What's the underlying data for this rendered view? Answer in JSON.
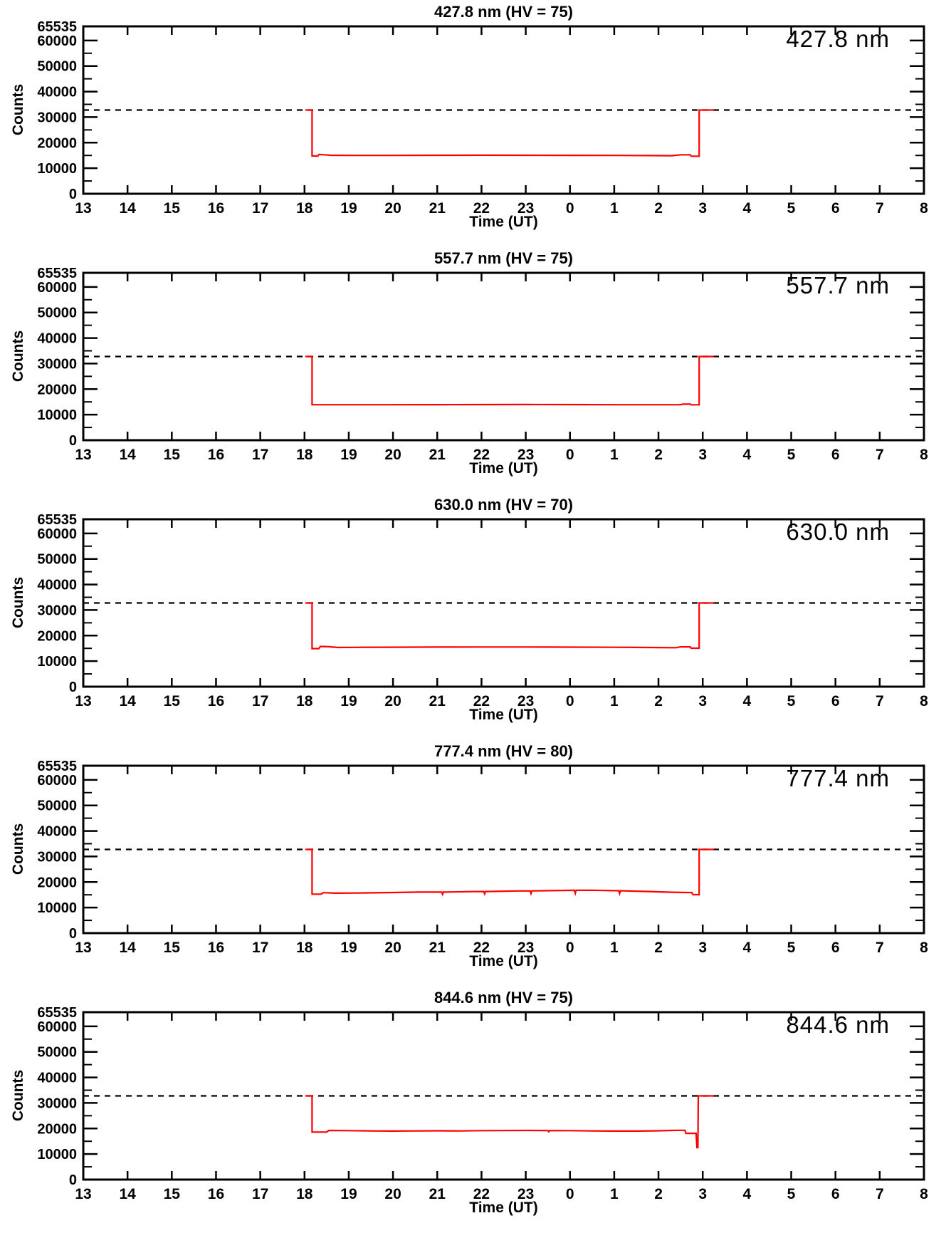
{
  "page": {
    "background": "#ffffff",
    "description": "Five stacked photometer count time-series panels"
  },
  "shared_axes": {
    "xlabel": "Time (UT)",
    "ylabel": "Counts",
    "x_tick_labels": [
      "13",
      "14",
      "15",
      "16",
      "17",
      "18",
      "19",
      "20",
      "21",
      "22",
      "23",
      "0",
      "1",
      "2",
      "3",
      "4",
      "5",
      "6",
      "7",
      "8"
    ],
    "x_range_hours": [
      13,
      32
    ],
    "ylim": [
      0,
      65535
    ],
    "y_major_ticks": [
      0,
      10000,
      20000,
      30000,
      40000,
      50000,
      60000,
      65535
    ],
    "y_major_labels": [
      "0",
      "10000",
      "20000",
      "30000",
      "40000",
      "50000",
      "60000",
      "65535"
    ],
    "y_minor_ticks": [
      5000,
      15000,
      25000,
      35000,
      45000,
      55000
    ],
    "reference_line": {
      "value": 32768,
      "style": "dashed",
      "color": "#000000"
    },
    "axis_color": "#000000",
    "grid": "off",
    "note": "Point x values are UT hours; values >= 24 represent times after midnight (24 = 0 UT, 27 = 3 UT)"
  },
  "chart_data": [
    {
      "type": "line",
      "title": "427.8 nm (HV = 75)",
      "wavelength_label": "427.8 nm",
      "hv": 75,
      "xlabel": "Time (UT)",
      "ylabel": "Counts",
      "line_color": "#ff0000",
      "points": [
        [
          18.02,
          32768
        ],
        [
          18.17,
          32768
        ],
        [
          18.17,
          14800
        ],
        [
          18.3,
          14750
        ],
        [
          18.33,
          15400
        ],
        [
          18.45,
          15250
        ],
        [
          18.6,
          15050
        ],
        [
          19.0,
          15000
        ],
        [
          20.0,
          15000
        ],
        [
          21.0,
          15050
        ],
        [
          22.0,
          15080
        ],
        [
          23.0,
          15060
        ],
        [
          24.0,
          15020
        ],
        [
          25.0,
          15000
        ],
        [
          25.8,
          14950
        ],
        [
          26.3,
          14900
        ],
        [
          26.5,
          15250
        ],
        [
          26.72,
          15250
        ],
        [
          26.74,
          14700
        ],
        [
          26.92,
          14700
        ],
        [
          26.92,
          32768
        ],
        [
          27.25,
          32768
        ]
      ]
    },
    {
      "type": "line",
      "title": "557.7 nm (HV = 75)",
      "wavelength_label": "557.7 nm",
      "hv": 75,
      "xlabel": "Time (UT)",
      "ylabel": "Counts",
      "line_color": "#ff0000",
      "points": [
        [
          18.02,
          32768
        ],
        [
          18.17,
          32768
        ],
        [
          18.17,
          13900
        ],
        [
          19.0,
          13880
        ],
        [
          20.0,
          13900
        ],
        [
          21.0,
          13920
        ],
        [
          22.0,
          13950
        ],
        [
          23.0,
          13960
        ],
        [
          24.0,
          13940
        ],
        [
          25.0,
          13900
        ],
        [
          26.0,
          13880
        ],
        [
          26.5,
          13880
        ],
        [
          26.55,
          14120
        ],
        [
          26.72,
          14120
        ],
        [
          26.74,
          13850
        ],
        [
          26.92,
          13850
        ],
        [
          26.92,
          32768
        ],
        [
          27.25,
          32768
        ]
      ]
    },
    {
      "type": "line",
      "title": "630.0 nm (HV = 70)",
      "wavelength_label": "630.0 nm",
      "hv": 70,
      "xlabel": "Time (UT)",
      "ylabel": "Counts",
      "line_color": "#ff0000",
      "points": [
        [
          18.02,
          32768
        ],
        [
          18.17,
          32768
        ],
        [
          18.17,
          14900
        ],
        [
          18.32,
          14900
        ],
        [
          18.36,
          15750
        ],
        [
          18.55,
          15650
        ],
        [
          18.75,
          15350
        ],
        [
          19.2,
          15400
        ],
        [
          20.0,
          15450
        ],
        [
          21.0,
          15500
        ],
        [
          22.0,
          15520
        ],
        [
          23.0,
          15520
        ],
        [
          24.0,
          15480
        ],
        [
          25.0,
          15420
        ],
        [
          26.0,
          15300
        ],
        [
          26.4,
          15250
        ],
        [
          26.5,
          15600
        ],
        [
          26.72,
          15600
        ],
        [
          26.74,
          15050
        ],
        [
          26.92,
          15050
        ],
        [
          26.92,
          32768
        ],
        [
          27.25,
          32768
        ]
      ]
    },
    {
      "type": "line",
      "title": "777.4 nm (HV = 80)",
      "wavelength_label": "777.4 nm",
      "hv": 80,
      "xlabel": "Time (UT)",
      "ylabel": "Counts",
      "line_color": "#ff0000",
      "points": [
        [
          18.02,
          32768
        ],
        [
          18.17,
          32768
        ],
        [
          18.17,
          15250
        ],
        [
          18.38,
          15250
        ],
        [
          18.42,
          15850
        ],
        [
          18.7,
          15650
        ],
        [
          19.2,
          15700
        ],
        [
          20.0,
          15900
        ],
        [
          20.6,
          16050
        ],
        [
          21.1,
          16050
        ],
        [
          21.12,
          15200
        ],
        [
          21.14,
          16050
        ],
        [
          21.8,
          16250
        ],
        [
          22.05,
          16300
        ],
        [
          22.07,
          15400
        ],
        [
          22.09,
          16300
        ],
        [
          22.8,
          16500
        ],
        [
          23.1,
          16550
        ],
        [
          23.12,
          15500
        ],
        [
          23.14,
          16550
        ],
        [
          23.8,
          16700
        ],
        [
          24.1,
          16750
        ],
        [
          24.12,
          15600
        ],
        [
          24.14,
          16750
        ],
        [
          24.5,
          16800
        ],
        [
          25.1,
          16600
        ],
        [
          25.12,
          15500
        ],
        [
          25.14,
          16600
        ],
        [
          25.8,
          16300
        ],
        [
          26.3,
          16000
        ],
        [
          26.6,
          15900
        ],
        [
          26.75,
          15900
        ],
        [
          26.78,
          15050
        ],
        [
          26.92,
          15050
        ],
        [
          26.92,
          32768
        ],
        [
          27.25,
          32768
        ]
      ]
    },
    {
      "type": "line",
      "title": "844.6 nm (HV = 75)",
      "wavelength_label": "844.6 nm",
      "hv": 75,
      "xlabel": "Time (UT)",
      "ylabel": "Counts",
      "line_color": "#ff0000",
      "points": [
        [
          18.02,
          32768
        ],
        [
          18.17,
          32768
        ],
        [
          18.17,
          18600
        ],
        [
          18.5,
          18600
        ],
        [
          18.55,
          19250
        ],
        [
          19.0,
          19150
        ],
        [
          19.5,
          19050
        ],
        [
          20.0,
          19000
        ],
        [
          20.5,
          19050
        ],
        [
          21.0,
          19100
        ],
        [
          21.5,
          19050
        ],
        [
          22.0,
          19150
        ],
        [
          22.5,
          19200
        ],
        [
          23.0,
          19250
        ],
        [
          23.5,
          19200
        ],
        [
          23.52,
          18700
        ],
        [
          23.54,
          19200
        ],
        [
          24.0,
          19150
        ],
        [
          24.5,
          19050
        ],
        [
          25.0,
          19000
        ],
        [
          25.5,
          19000
        ],
        [
          26.0,
          19100
        ],
        [
          26.3,
          19250
        ],
        [
          26.55,
          19300
        ],
        [
          26.6,
          19300
        ],
        [
          26.62,
          18100
        ],
        [
          26.85,
          18100
        ],
        [
          26.87,
          12500
        ],
        [
          26.89,
          12500
        ],
        [
          26.9,
          32768
        ],
        [
          27.25,
          32768
        ]
      ]
    }
  ]
}
